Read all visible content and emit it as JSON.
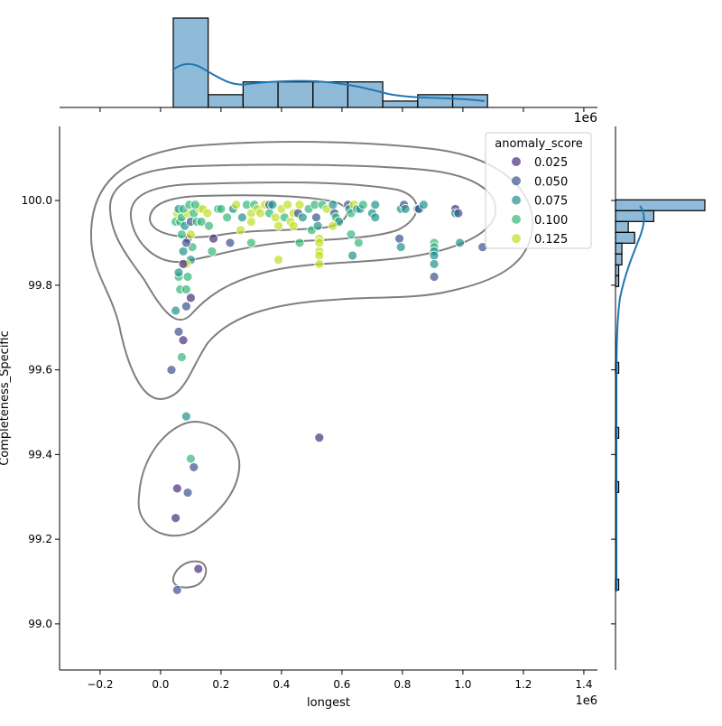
{
  "chart_data": {
    "type": "scatter",
    "xlabel": "longest",
    "ylabel": "Completeness_Specific",
    "x_offset_label": "1e6",
    "top_offset_label": "1e6",
    "xlim": [
      -0.334,
      1.445
    ],
    "ylim": [
      98.891,
      100.175
    ],
    "x_ticks": [
      -0.2,
      0.0,
      0.2,
      0.4,
      0.6,
      0.8,
      1.0,
      1.2,
      1.4
    ],
    "x_tick_labels": [
      "−0.2",
      "0.0",
      "0.2",
      "0.4",
      "0.6",
      "0.8",
      "1.0",
      "1.2",
      "1.4"
    ],
    "y_ticks": [
      99.0,
      99.2,
      99.4,
      99.6,
      99.8,
      100.0
    ],
    "y_tick_labels": [
      "99.0",
      "99.2",
      "99.4",
      "99.6",
      "99.8",
      "100.0"
    ],
    "grid": false,
    "hue": "anomaly_score",
    "legend": {
      "title": "anomaly_score",
      "placement": "top-right",
      "entries": [
        {
          "label": "0.025",
          "value": 0.025,
          "color": "#472d7b"
        },
        {
          "label": "0.050",
          "value": 0.05,
          "color": "#3b528b"
        },
        {
          "label": "0.075",
          "value": 0.075,
          "color": "#21918c"
        },
        {
          "label": "0.100",
          "value": 0.1,
          "color": "#35b779"
        },
        {
          "label": "0.125",
          "value": 0.125,
          "color": "#bddf26"
        }
      ]
    },
    "points": [
      [
        0.036,
        99.6,
        0.05
      ],
      [
        0.055,
        99.08,
        0.05
      ],
      [
        0.05,
        99.25,
        0.025
      ],
      [
        0.055,
        99.32,
        0.025
      ],
      [
        0.09,
        99.31,
        0.05
      ],
      [
        0.11,
        99.37,
        0.05
      ],
      [
        0.1,
        99.39,
        0.1
      ],
      [
        0.085,
        99.49,
        0.075
      ],
      [
        0.125,
        99.13,
        0.025
      ],
      [
        0.07,
        99.63,
        0.1
      ],
      [
        0.075,
        99.67,
        0.025
      ],
      [
        0.06,
        99.69,
        0.05
      ],
      [
        0.05,
        99.74,
        0.075
      ],
      [
        0.085,
        99.75,
        0.05
      ],
      [
        0.1,
        99.77,
        0.025
      ],
      [
        0.065,
        99.79,
        0.1
      ],
      [
        0.085,
        99.79,
        0.1
      ],
      [
        0.06,
        99.82,
        0.1
      ],
      [
        0.09,
        99.82,
        0.1
      ],
      [
        0.06,
        99.83,
        0.075
      ],
      [
        0.1,
        99.86,
        0.075
      ],
      [
        0.085,
        99.85,
        0.125
      ],
      [
        0.075,
        99.85,
        0.025
      ],
      [
        0.075,
        99.88,
        0.075
      ],
      [
        0.105,
        99.89,
        0.1
      ],
      [
        0.09,
        99.91,
        0.025
      ],
      [
        0.085,
        99.9,
        0.05
      ],
      [
        0.07,
        99.92,
        0.1
      ],
      [
        0.1,
        99.92,
        0.125
      ],
      [
        0.05,
        99.95,
        0.1
      ],
      [
        0.065,
        99.95,
        0.1
      ],
      [
        0.08,
        99.94,
        0.075
      ],
      [
        0.1,
        99.95,
        0.05
      ],
      [
        0.12,
        99.95,
        0.1
      ],
      [
        0.135,
        99.95,
        0.1
      ],
      [
        0.055,
        99.97,
        0.125
      ],
      [
        0.07,
        99.96,
        0.1
      ],
      [
        0.09,
        99.97,
        0.125
      ],
      [
        0.11,
        99.97,
        0.1
      ],
      [
        0.13,
        99.98,
        0.125
      ],
      [
        0.06,
        99.98,
        0.075
      ],
      [
        0.075,
        99.98,
        0.1
      ],
      [
        0.095,
        99.99,
        0.1
      ],
      [
        0.115,
        99.99,
        0.1
      ],
      [
        0.14,
        99.98,
        0.125
      ],
      [
        0.16,
        99.94,
        0.1
      ],
      [
        0.155,
        99.97,
        0.125
      ],
      [
        0.17,
        99.88,
        0.1
      ],
      [
        0.175,
        99.91,
        0.025
      ],
      [
        0.19,
        99.98,
        0.1
      ],
      [
        0.2,
        99.98,
        0.1
      ],
      [
        0.22,
        99.96,
        0.1
      ],
      [
        0.23,
        99.9,
        0.05
      ],
      [
        0.24,
        99.98,
        0.075
      ],
      [
        0.25,
        99.99,
        0.125
      ],
      [
        0.27,
        99.96,
        0.075
      ],
      [
        0.265,
        99.93,
        0.125
      ],
      [
        0.285,
        99.99,
        0.1
      ],
      [
        0.3,
        99.97,
        0.125
      ],
      [
        0.3,
        99.95,
        0.125
      ],
      [
        0.3,
        99.9,
        0.1
      ],
      [
        0.31,
        99.99,
        0.1
      ],
      [
        0.32,
        99.98,
        0.125
      ],
      [
        0.33,
        99.97,
        0.125
      ],
      [
        0.345,
        99.99,
        0.125
      ],
      [
        0.36,
        99.99,
        0.05
      ],
      [
        0.36,
        99.97,
        0.1
      ],
      [
        0.37,
        99.99,
        0.075
      ],
      [
        0.38,
        99.96,
        0.125
      ],
      [
        0.39,
        99.94,
        0.125
      ],
      [
        0.39,
        99.86,
        0.125
      ],
      [
        0.4,
        99.98,
        0.125
      ],
      [
        0.41,
        99.96,
        0.1
      ],
      [
        0.42,
        99.99,
        0.125
      ],
      [
        0.43,
        99.95,
        0.125
      ],
      [
        0.44,
        99.94,
        0.125
      ],
      [
        0.44,
        99.97,
        0.125
      ],
      [
        0.455,
        99.97,
        0.05
      ],
      [
        0.46,
        99.99,
        0.125
      ],
      [
        0.46,
        99.9,
        0.1
      ],
      [
        0.47,
        99.96,
        0.075
      ],
      [
        0.49,
        99.98,
        0.1
      ],
      [
        0.5,
        99.93,
        0.1
      ],
      [
        0.51,
        99.99,
        0.1
      ],
      [
        0.515,
        99.96,
        0.05
      ],
      [
        0.52,
        99.94,
        0.075
      ],
      [
        0.525,
        99.91,
        0.125
      ],
      [
        0.525,
        99.9,
        0.125
      ],
      [
        0.525,
        99.88,
        0.125
      ],
      [
        0.525,
        99.87,
        0.125
      ],
      [
        0.525,
        99.85,
        0.125
      ],
      [
        0.525,
        99.44,
        0.025
      ],
      [
        0.535,
        99.99,
        0.1
      ],
      [
        0.55,
        99.98,
        0.125
      ],
      [
        0.57,
        99.99,
        0.075
      ],
      [
        0.575,
        99.97,
        0.05
      ],
      [
        0.58,
        99.96,
        0.1
      ],
      [
        0.59,
        99.95,
        0.075
      ],
      [
        0.57,
        99.94,
        0.125
      ],
      [
        0.62,
        99.99,
        0.05
      ],
      [
        0.625,
        99.98,
        0.075
      ],
      [
        0.63,
        99.97,
        0.1
      ],
      [
        0.63,
        99.92,
        0.1
      ],
      [
        0.635,
        99.87,
        0.075
      ],
      [
        0.64,
        99.99,
        0.125
      ],
      [
        0.65,
        99.98,
        0.075
      ],
      [
        0.655,
        99.9,
        0.1
      ],
      [
        0.66,
        99.98,
        0.075
      ],
      [
        0.67,
        99.99,
        0.1
      ],
      [
        0.7,
        99.97,
        0.075
      ],
      [
        0.71,
        99.99,
        0.075
      ],
      [
        0.71,
        99.96,
        0.075
      ],
      [
        0.79,
        99.91,
        0.05
      ],
      [
        0.795,
        99.89,
        0.075
      ],
      [
        0.795,
        99.98,
        0.075
      ],
      [
        0.805,
        99.99,
        0.05
      ],
      [
        0.81,
        99.98,
        0.075
      ],
      [
        0.85,
        99.98,
        0.075
      ],
      [
        0.855,
        99.98,
        0.05
      ],
      [
        0.87,
        99.99,
        0.075
      ],
      [
        0.905,
        99.9,
        0.1
      ],
      [
        0.905,
        99.89,
        0.1
      ],
      [
        0.905,
        99.88,
        0.075
      ],
      [
        0.905,
        99.87,
        0.075
      ],
      [
        0.905,
        99.85,
        0.075
      ],
      [
        0.905,
        99.82,
        0.05
      ],
      [
        0.975,
        99.98,
        0.025
      ],
      [
        0.975,
        99.97,
        0.075
      ],
      [
        0.985,
        99.97,
        0.05
      ],
      [
        0.99,
        99.9,
        0.075
      ],
      [
        1.065,
        99.89,
        0.05
      ]
    ],
    "marginal_x_hist": {
      "bin_start": 0.042,
      "bin_width": 0.1155,
      "counts": [
        28,
        4,
        8,
        8,
        8,
        8,
        2,
        4,
        4
      ],
      "color": "#1f77b4"
    },
    "marginal_y_hist": {
      "bin_start": 99.08,
      "bin_width": 0.0256,
      "counts": [
        1,
        0,
        0,
        0,
        0,
        0,
        0,
        0,
        0,
        1,
        0,
        0,
        0,
        0,
        1,
        0,
        0,
        0,
        0,
        0,
        1,
        0,
        0,
        0,
        0,
        0,
        0,
        0,
        1,
        1,
        2,
        2,
        6,
        4,
        12,
        28
      ],
      "color": "#1f77b4"
    },
    "marginal_ymax": 28
  }
}
